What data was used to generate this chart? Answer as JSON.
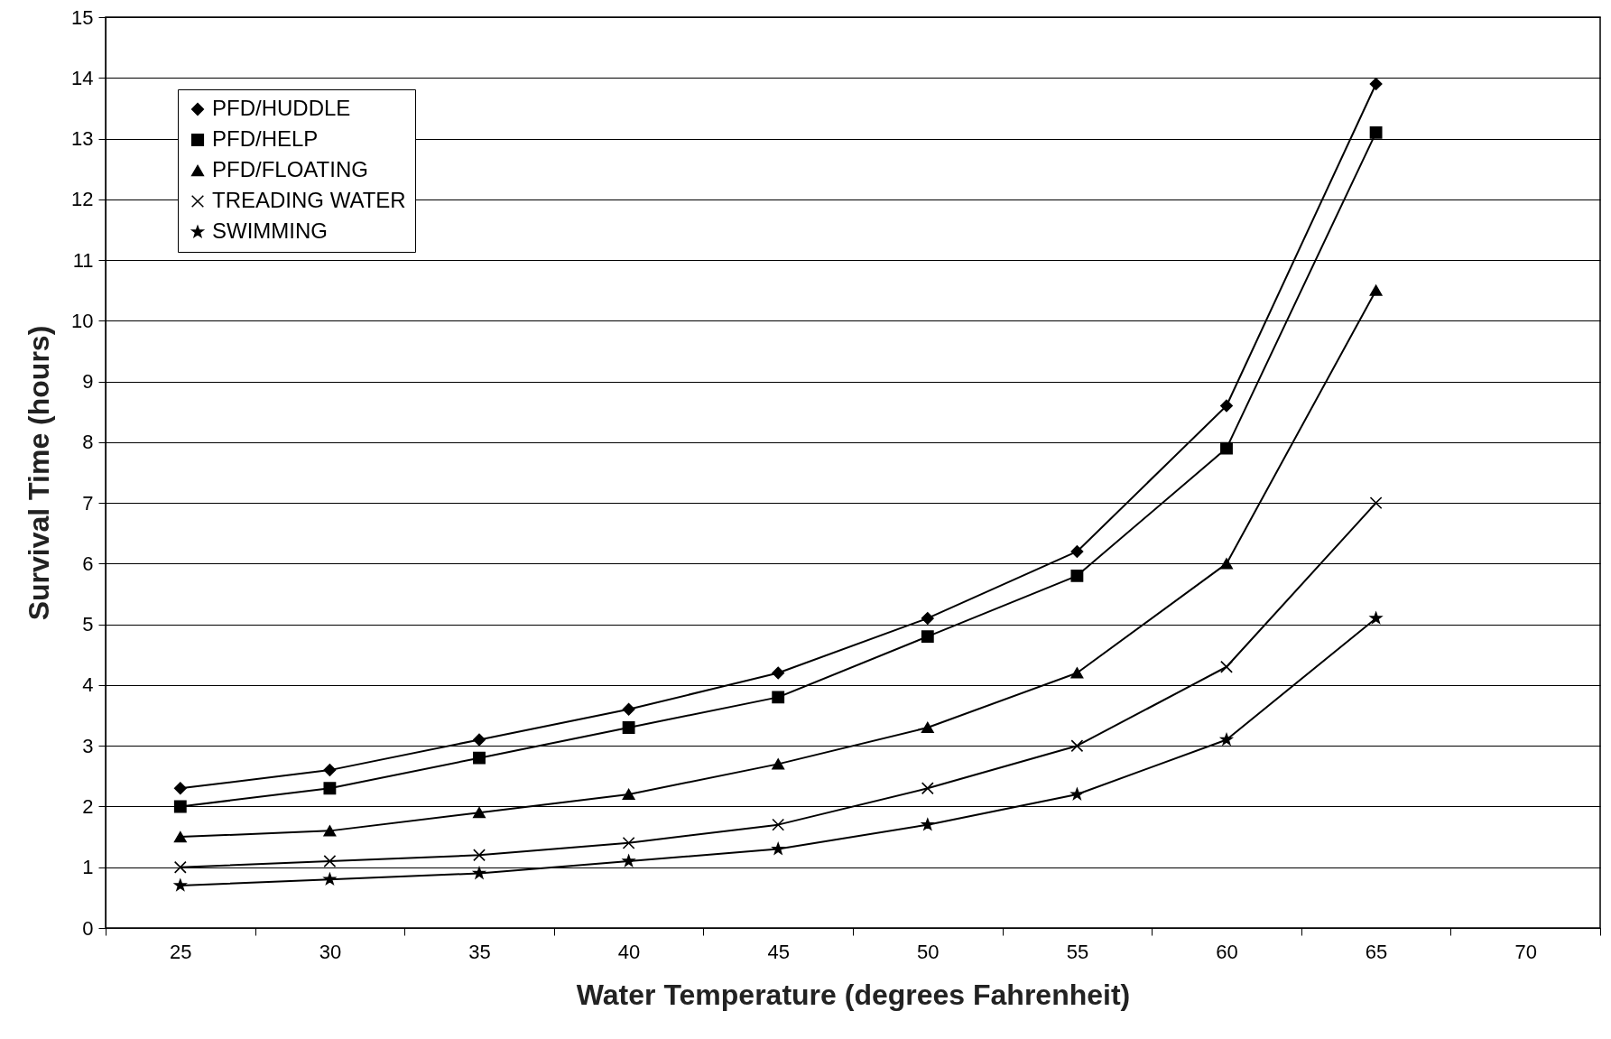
{
  "chart_data": {
    "type": "line",
    "xlabel": "Water Temperature (degrees Fahrenheit)",
    "ylabel": "Survival Time (hours)",
    "categories": [
      "25",
      "30",
      "35",
      "40",
      "45",
      "50",
      "55",
      "60",
      "65",
      "70"
    ],
    "ylim": [
      0,
      15
    ],
    "yticks": [
      0,
      1,
      2,
      3,
      4,
      5,
      6,
      7,
      8,
      9,
      10,
      11,
      12,
      13,
      14,
      15
    ],
    "grid": "y",
    "legend": "top left",
    "series": [
      {
        "name": "PFD/HUDDLE",
        "color": "#000000",
        "marker": "diamond",
        "values": [
          2.3,
          2.6,
          3.1,
          3.6,
          4.2,
          5.1,
          6.2,
          8.6,
          13.9,
          null
        ]
      },
      {
        "name": "PFD/HELP",
        "color": "#000000",
        "marker": "square",
        "values": [
          2.0,
          2.3,
          2.8,
          3.3,
          3.8,
          4.8,
          5.8,
          7.9,
          13.1,
          null
        ]
      },
      {
        "name": "PFD/FLOATING",
        "color": "#000000",
        "marker": "triangle",
        "values": [
          1.5,
          1.6,
          1.9,
          2.2,
          2.7,
          3.3,
          4.2,
          6.0,
          10.5,
          null
        ]
      },
      {
        "name": "TREADING WATER",
        "color": "#000000",
        "marker": "cross",
        "values": [
          1.0,
          1.1,
          1.2,
          1.4,
          1.7,
          2.3,
          3.0,
          4.3,
          7.0,
          null
        ]
      },
      {
        "name": "SWIMMING",
        "color": "#000000",
        "marker": "star",
        "values": [
          0.7,
          0.8,
          0.9,
          1.1,
          1.3,
          1.7,
          2.2,
          3.1,
          5.1,
          null
        ]
      }
    ]
  }
}
